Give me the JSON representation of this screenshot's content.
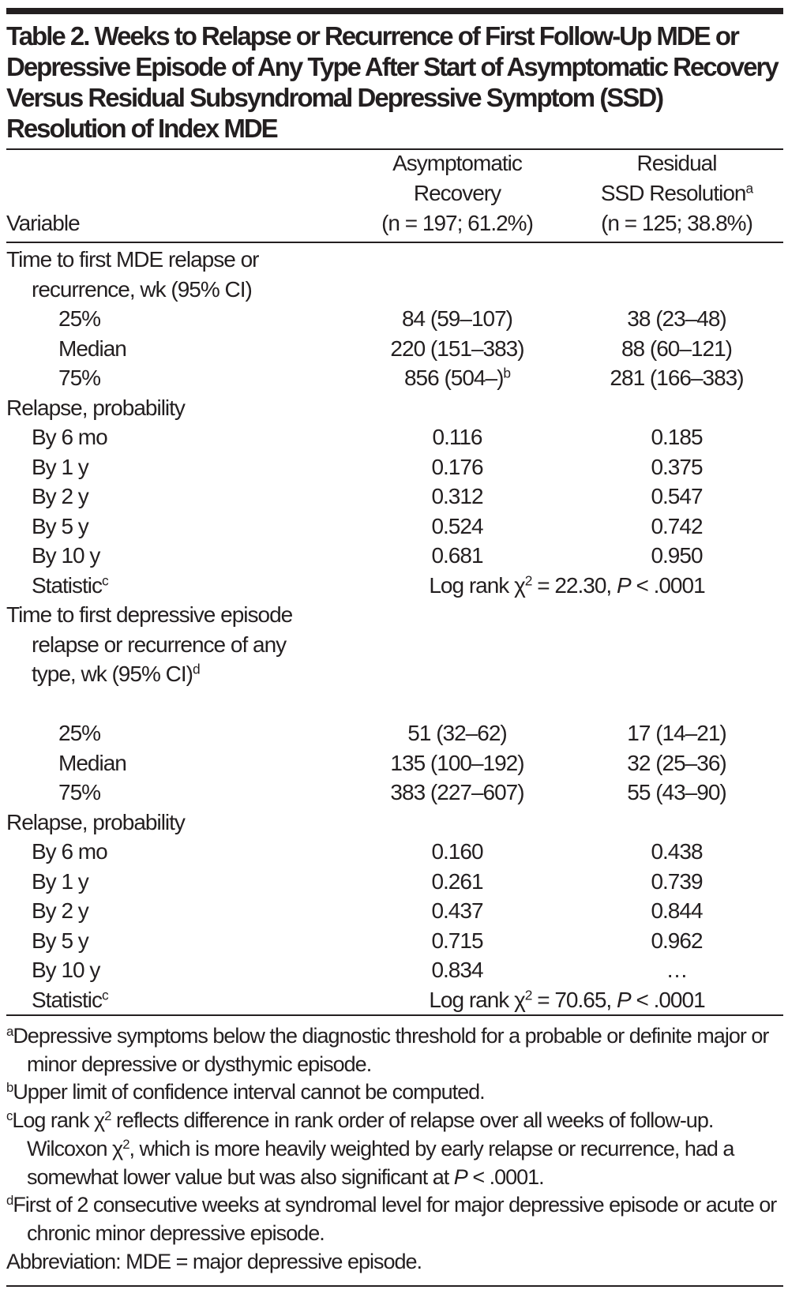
{
  "title": "Table 2. Weeks to Relapse or Recurrence of First Follow-Up MDE or Depressive Episode of Any Type After Start of Asymptomatic Recovery Versus Residual Subsyndromal Depressive Symptom (SSD) Resolution of Index MDE",
  "header": {
    "variable": "Variable",
    "col1": {
      "line1": "Asymptomatic",
      "line2": "Recovery",
      "line3": "(n = 197; 61.2%)"
    },
    "col2": {
      "line1": "Residual",
      "line2": "SSD Resolution",
      "line2_sup": "a",
      "line3": "(n = 125; 38.8%)"
    }
  },
  "sections": [
    {
      "label_lines": [
        "Time to first MDE relapse or",
        "recurrence, wk (95% CI)"
      ],
      "label_sup": "",
      "percentiles": [
        {
          "label": "25%",
          "c1": "84 (59–107)",
          "c1_sup": "",
          "c2": "38 (23–48)"
        },
        {
          "label": "Median",
          "c1": "220 (151–383)",
          "c1_sup": "",
          "c2": "88 (60–121)"
        },
        {
          "label": "75%",
          "c1": "856 (504–)",
          "c1_sup": "b",
          "c2": "281 (166–383)"
        }
      ],
      "prob_label": "Relapse, probability",
      "probabilities": [
        {
          "label": "By 6 mo",
          "c1": "0.116",
          "c2": "0.185"
        },
        {
          "label": "By 1 y",
          "c1": "0.176",
          "c2": "0.375"
        },
        {
          "label": "By 2 y",
          "c1": "0.312",
          "c2": "0.547"
        },
        {
          "label": "By 5 y",
          "c1": "0.524",
          "c2": "0.742"
        },
        {
          "label": "By 10 y",
          "c1": "0.681",
          "c2": "0.950"
        }
      ],
      "statistic": {
        "label": "Statistic",
        "sup": "c",
        "pre": "Log rank χ",
        "exp": "2",
        "value": " = 22.30, ",
        "p": "P",
        "pval": " < .0001"
      }
    },
    {
      "label_lines": [
        "Time to first depressive episode",
        "relapse or recurrence of any",
        "type, wk (95% CI)"
      ],
      "label_sup": "d",
      "percentiles": [
        {
          "label": "25%",
          "c1": "51 (32–62)",
          "c1_sup": "",
          "c2": "17 (14–21)"
        },
        {
          "label": "Median",
          "c1": "135 (100–192)",
          "c1_sup": "",
          "c2": "32 (25–36)"
        },
        {
          "label": "75%",
          "c1": "383 (227–607)",
          "c1_sup": "",
          "c2": "55 (43–90)"
        }
      ],
      "prob_label": "Relapse, probability",
      "probabilities": [
        {
          "label": "By 6 mo",
          "c1": "0.160",
          "c2": "0.438"
        },
        {
          "label": "By 1 y",
          "c1": "0.261",
          "c2": "0.739"
        },
        {
          "label": "By 2 y",
          "c1": "0.437",
          "c2": "0.844"
        },
        {
          "label": "By 5 y",
          "c1": "0.715",
          "c2": "0.962"
        },
        {
          "label": "By 10 y",
          "c1": "0.834",
          "c2": "…"
        }
      ],
      "statistic": {
        "label": "Statistic",
        "sup": "c",
        "pre": "Log rank χ",
        "exp": "2",
        "value": " = 70.65, ",
        "p": "P",
        "pval": " < .0001"
      }
    }
  ],
  "footnotes": {
    "a": {
      "mark": "a",
      "text": "Depressive symptoms below the diagnostic threshold for a probable or definite major or minor depressive or dysthymic episode."
    },
    "b": {
      "mark": "b",
      "text": "Upper limit of confidence interval cannot be computed."
    },
    "c": {
      "mark": "c",
      "t1": "Log rank χ",
      "e1": "2",
      "t2": " reflects difference in rank order of relapse over all weeks of follow-up. Wilcoxon χ",
      "e2": "2",
      "t3": ", which is more heavily weighted by early relapse or recurrence, had a somewhat lower value but was also significant at ",
      "p": "P",
      "t4": " < .0001."
    },
    "d": {
      "mark": "d",
      "text": "First of 2 consecutive weeks at syndromal level for major depressive episode or acute or chronic minor depressive episode."
    },
    "abbreviation": "Abbreviation: MDE = major depressive episode."
  }
}
